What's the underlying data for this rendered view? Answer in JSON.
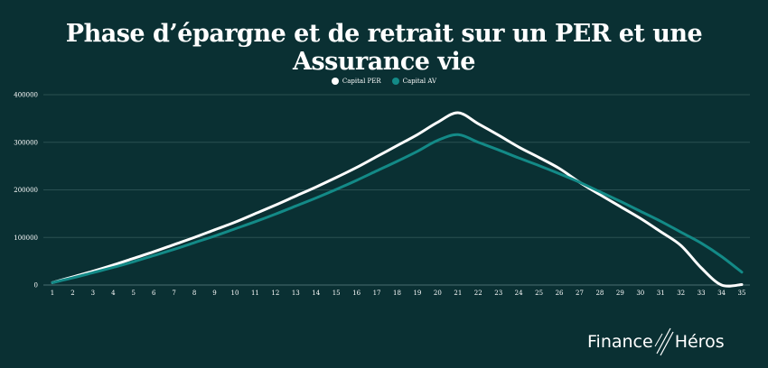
{
  "chart_data": {
    "type": "line",
    "title": "Phase d’épargne et de retrait sur un PER et une Assurance vie",
    "xlabel": "",
    "ylabel": "",
    "x": [
      1,
      2,
      3,
      4,
      5,
      6,
      7,
      8,
      9,
      10,
      11,
      12,
      13,
      14,
      15,
      16,
      17,
      18,
      19,
      20,
      21,
      22,
      23,
      24,
      25,
      26,
      27,
      28,
      29,
      30,
      31,
      32,
      33,
      34,
      35
    ],
    "ylim": [
      0,
      400000
    ],
    "yticks": [
      0,
      100000,
      200000,
      300000,
      400000
    ],
    "grid": true,
    "legend_position": "top-center",
    "series": [
      {
        "name": "Capital PER",
        "color": "#ffffff",
        "values": [
          5000,
          17000,
          29000,
          42000,
          56000,
          70000,
          85000,
          100000,
          116000,
          132000,
          150000,
          168000,
          187000,
          206000,
          226000,
          247000,
          270000,
          293000,
          316000,
          342000,
          362000,
          339000,
          315000,
          290000,
          268000,
          245000,
          216000,
          190000,
          165000,
          140000,
          112000,
          83000,
          36000,
          0,
          1000
        ]
      },
      {
        "name": "Capital AV",
        "color": "#138a87",
        "values": [
          5000,
          15000,
          26000,
          37000,
          49000,
          62000,
          75000,
          89000,
          103000,
          118000,
          133000,
          149000,
          166000,
          183000,
          201000,
          220000,
          240000,
          260000,
          281000,
          304000,
          316000,
          300000,
          284000,
          267000,
          251000,
          234000,
          216000,
          196000,
          176000,
          155000,
          134000,
          111000,
          88000,
          60000,
          27000
        ]
      }
    ]
  },
  "brand": {
    "logo_left": "Finance",
    "logo_right": "Héros"
  },
  "colors": {
    "background": "#0a3033",
    "grid": "#2a5052",
    "per": "#ffffff",
    "av": "#138a87"
  }
}
